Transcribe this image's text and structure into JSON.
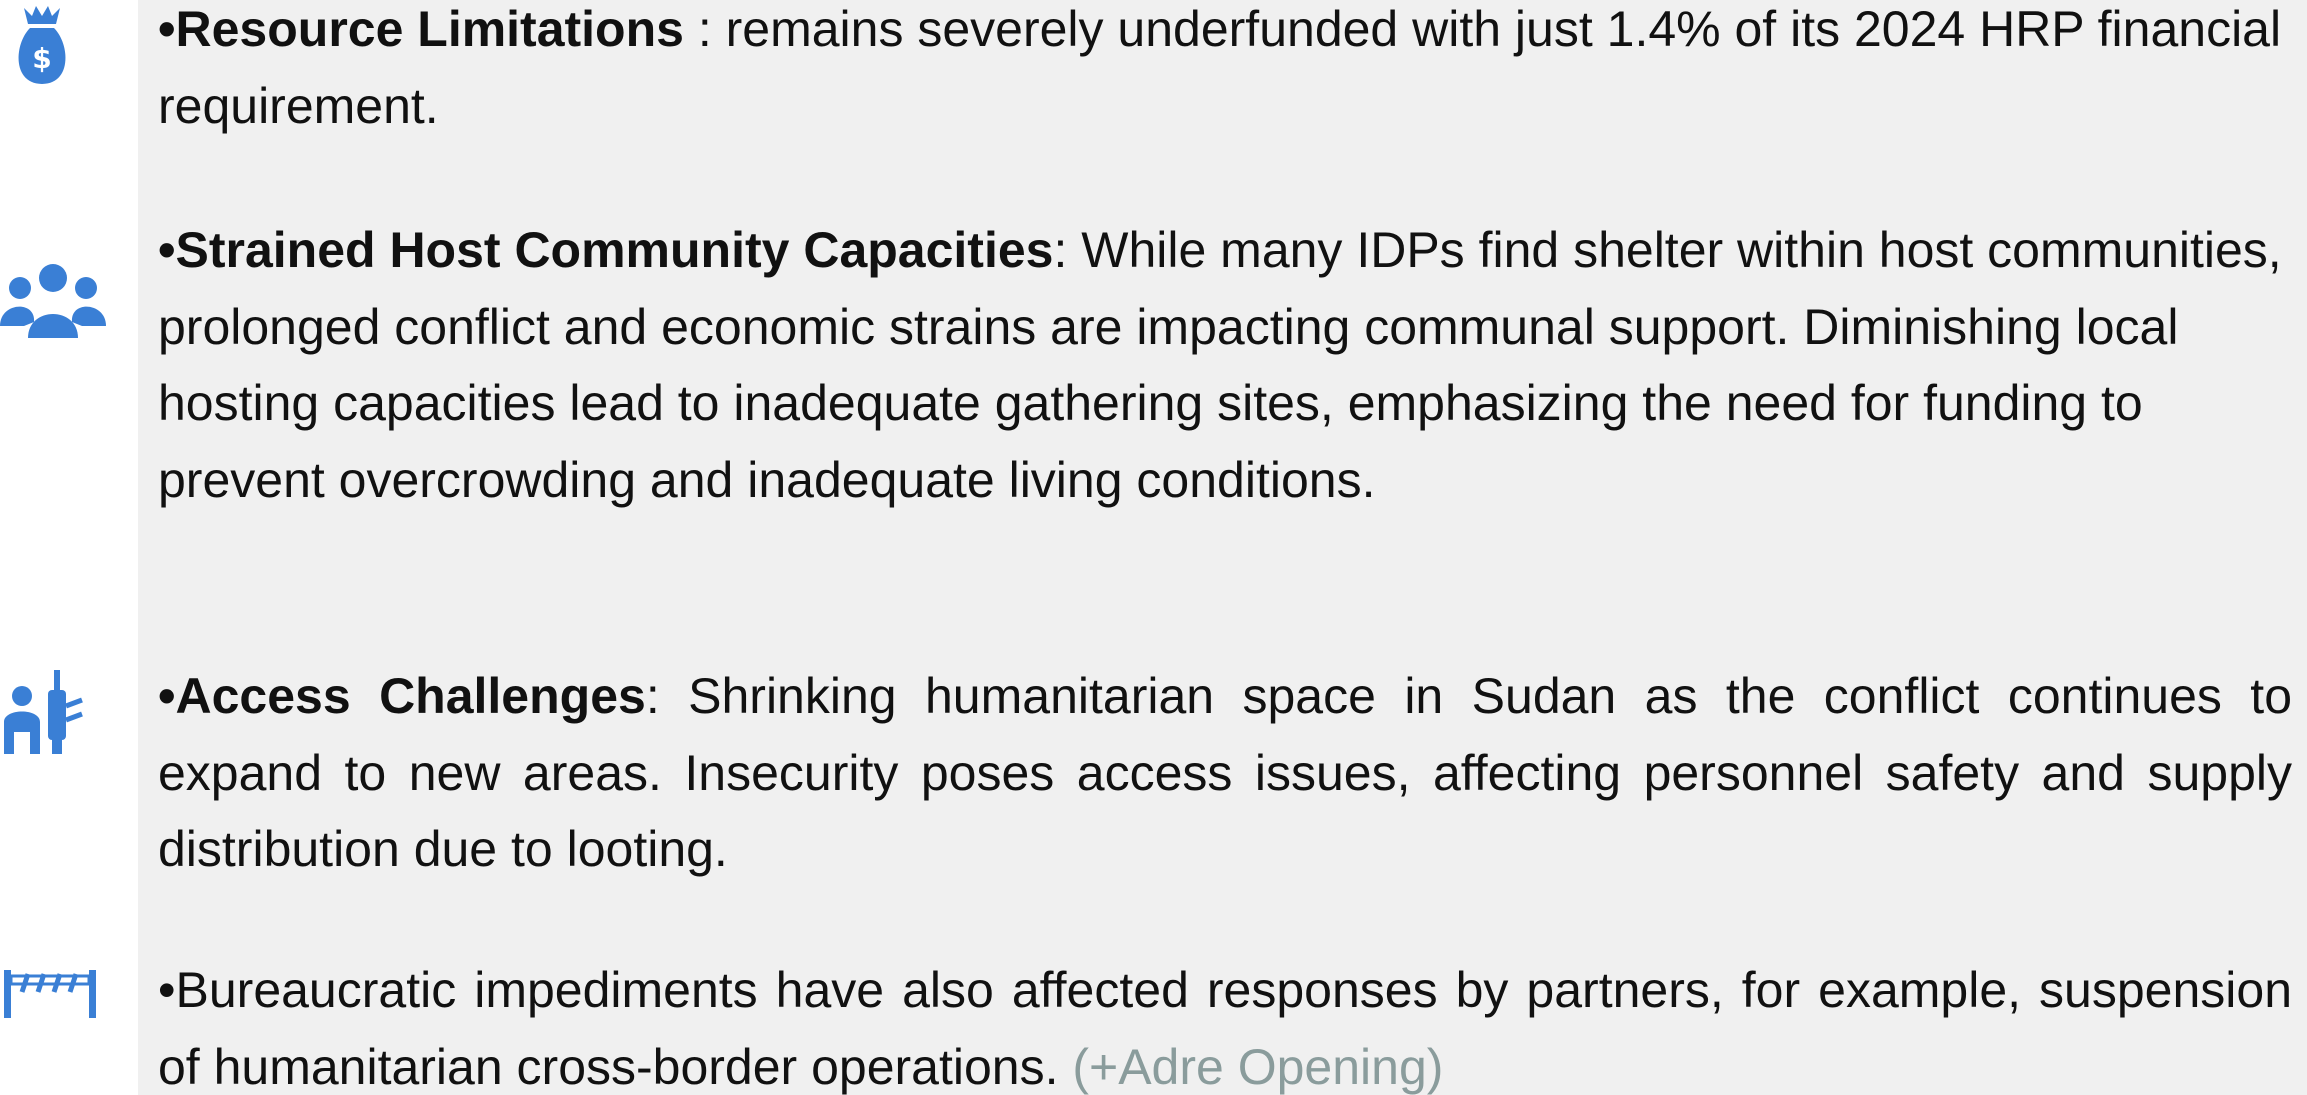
{
  "items": [
    {
      "bold": "•Resource Limitations",
      "text": " : remains severely underfunded with just 1.4% of its 2024 HRP financial requirement."
    },
    {
      "bold": "•Strained Host Community Capacities",
      "text": ": While many IDPs find shelter within host communities, prolonged conflict and economic strains are impacting communal support. Diminishing local hosting capacities lead to inadequate gathering sites, emphasizing the need for funding to prevent overcrowding and inadequate living conditions."
    },
    {
      "bold": "•Access Challenges",
      "text": ": Shrinking humanitarian space in Sudan as the conflict continues to expand to new areas. Insecurity poses access issues, affecting personnel safety and supply distribution due to looting."
    },
    {
      "text": "•Bureaucratic impediments have also affected responses by partners, for example, suspension of humanitarian cross-border operations. ",
      "note": "(+Adre Opening)"
    }
  ]
}
